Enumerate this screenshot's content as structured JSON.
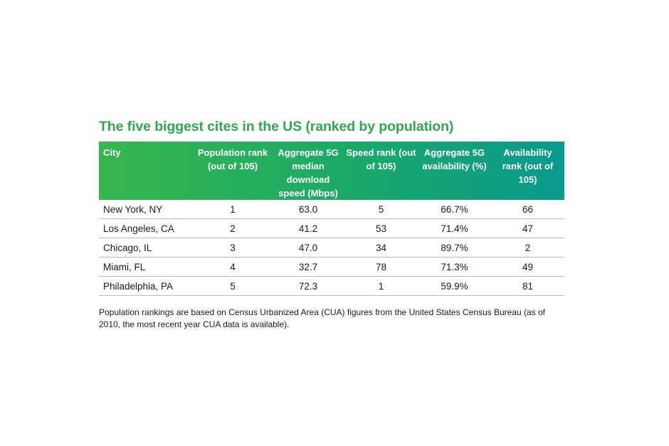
{
  "title": "The five biggest cites in the US (ranked by population)",
  "colors": {
    "title": "#2fa84f",
    "header_start": "#36b64c",
    "header_end": "#0a9a8e",
    "row_rule": "#b9b9b9"
  },
  "table": {
    "headers": [
      "City",
      "Population rank (out of 105)",
      "Aggregate 5G median download speed (Mbps)",
      "Speed rank (out of 105)",
      "Aggregate 5G availability (%)",
      "Availability rank (out of 105)"
    ],
    "rows": [
      [
        "New York, NY",
        "1",
        "63.0",
        "5",
        "66.7%",
        "66"
      ],
      [
        "Los Angeles, CA",
        "2",
        "41.2",
        "53",
        "71.4%",
        "47"
      ],
      [
        "Chicago, IL",
        "3",
        "47.0",
        "34",
        "89.7%",
        "2"
      ],
      [
        "Miami, FL",
        "4",
        "32.7",
        "78",
        "71.3%",
        "49"
      ],
      [
        "Philadelphia, PA",
        "5",
        "72.3",
        "1",
        "59.9%",
        "81"
      ]
    ]
  },
  "footnote": "Population rankings are based on Census Urbanized Area (CUA) figures from the United States Census Bureau (as of 2010, the most recent year CUA data is available)."
}
